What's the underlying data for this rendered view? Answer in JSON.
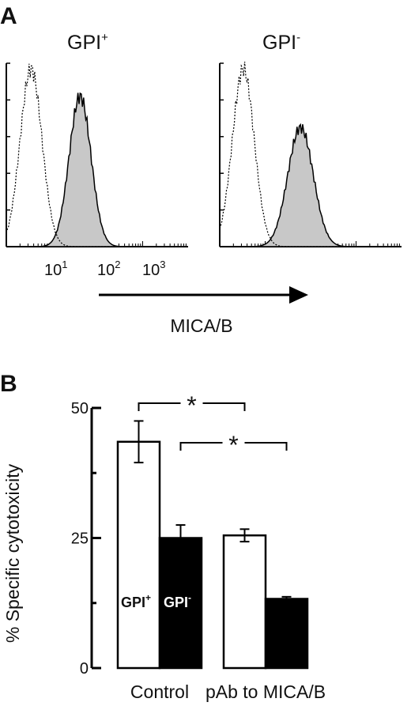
{
  "figure": {
    "panel_a_letter": "A",
    "panel_b_letter": "B",
    "superscript_plus": "+",
    "superscript_minus": "-"
  },
  "chart_data": [
    {
      "type": "area",
      "panel": "A",
      "title_base": "GPI",
      "title_sup": "+",
      "x_scale": "log",
      "x_tick_labels": [
        {
          "base": "10",
          "exp": "1",
          "value": 10
        },
        {
          "base": "10",
          "exp": "2",
          "value": 100
        },
        {
          "base": "10",
          "exp": "3",
          "value": 1000
        }
      ],
      "xlim": [
        1,
        10000
      ],
      "xlabel": "MICA/B",
      "series": [
        {
          "style": "dotted",
          "fill": "none",
          "peak_x": 3.5,
          "spread": 0.24,
          "amplitude": 0.97
        },
        {
          "style": "solid",
          "fill": "#c8c8c8",
          "peak_x": 42,
          "spread": 0.24,
          "amplitude": 0.82
        }
      ]
    },
    {
      "type": "area",
      "panel": "A",
      "title_base": "GPI",
      "title_sup": "-",
      "x_scale": "log",
      "xlim": [
        1,
        10000
      ],
      "series": [
        {
          "style": "dotted",
          "fill": "none",
          "peak_x": 3.3,
          "spread": 0.24,
          "amplitude": 0.97
        },
        {
          "style": "solid",
          "fill": "#c8c8c8",
          "peak_x": 60,
          "spread": 0.28,
          "amplitude": 0.65
        }
      ]
    },
    {
      "type": "bar",
      "panel": "B",
      "categories": [
        "Control",
        "pAb to MICA/B"
      ],
      "ylabel": "% Specific cytotoxicity",
      "ylim": [
        0,
        50
      ],
      "y_ticks": [
        0,
        25,
        50
      ],
      "series": [
        {
          "color": "#ffffff",
          "values": [
            43.5,
            25.5
          ],
          "errors": [
            4.0,
            1.2
          ]
        },
        {
          "color": "#000000",
          "values": [
            25.0,
            13.3
          ],
          "errors": [
            2.5,
            0.4
          ]
        }
      ],
      "bar_labels": [
        {
          "base": "GPI",
          "sup": "+",
          "on": "white-control"
        },
        {
          "base": "GPI",
          "sup": "-",
          "on": "black-control"
        }
      ],
      "significance": [
        {
          "from": "white-control",
          "to": "white-pAb",
          "mark": "*"
        },
        {
          "from": "black-control",
          "to": "black-pAb",
          "mark": "*"
        }
      ]
    }
  ]
}
